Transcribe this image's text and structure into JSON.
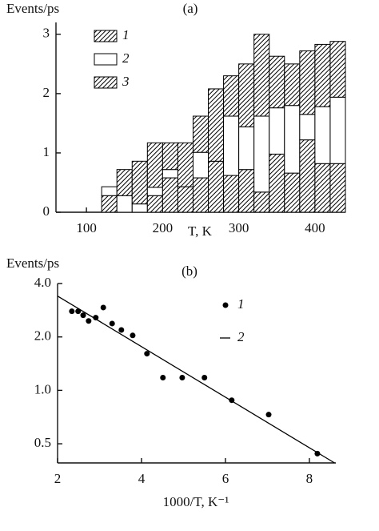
{
  "chart_data": [
    {
      "type": "histogram",
      "title": "(a)",
      "ylabel": "Events/ps",
      "xlabel": "T, K",
      "bins": [
        120,
        140,
        160,
        180,
        200,
        220,
        240,
        260,
        280,
        300,
        320,
        340,
        360,
        380,
        400,
        420,
        440
      ],
      "series": [
        {
          "name": "1",
          "color": "#000000",
          "hatch": true,
          "values": [
            0.28,
            0,
            0,
            0.28,
            0.58,
            0.43,
            0.58,
            0.86,
            0.62,
            0.72,
            0.34,
            0.98,
            0.66,
            1.22,
            0.82,
            0.82
          ]
        },
        {
          "name": "2",
          "color": "#ffffff",
          "hatch": false,
          "values": [
            0.15,
            0.28,
            0.14,
            0.14,
            0.14,
            0,
            0.43,
            0,
            1.0,
            0.72,
            1.28,
            0.78,
            1.14,
            0.43,
            0.96,
            1.12
          ]
        },
        {
          "name": "3",
          "color": "#000000",
          "hatch": true,
          "values": [
            0,
            0.44,
            0.72,
            0.75,
            0.45,
            0.74,
            0.61,
            1.22,
            0.68,
            1.06,
            1.38,
            0.87,
            0.7,
            1.07,
            1.05,
            0.94
          ]
        }
      ],
      "xlim": [
        60,
        440
      ],
      "xticks": [
        100,
        200,
        300,
        400
      ],
      "ylim": [
        0,
        3.2
      ],
      "yticks": [
        0,
        1,
        2,
        3
      ],
      "legend": "upper left"
    },
    {
      "type": "scatter",
      "title": "(b)",
      "ylabel": "Events/ps",
      "xlabel": "1000/T, K⁻¹",
      "series": [
        {
          "name": "1",
          "mode": "markers",
          "color": "#000000",
          "x": [
            2.34,
            2.49,
            2.61,
            2.74,
            2.91,
            3.09,
            3.3,
            3.52,
            3.79,
            4.13,
            4.51,
            4.97,
            5.5,
            6.15,
            7.03,
            8.19
          ],
          "y": [
            2.79,
            2.79,
            2.65,
            2.46,
            2.57,
            2.93,
            2.38,
            2.19,
            2.04,
            1.61,
            1.18,
            1.18,
            1.18,
            0.88,
            0.73,
            0.44
          ]
        },
        {
          "name": "2",
          "mode": "line",
          "color": "#000000",
          "x": [
            2,
            8.6
          ],
          "y": [
            3.4,
            0.39
          ]
        }
      ],
      "xlim": [
        2,
        8.63
      ],
      "xticks": [
        2,
        4,
        6,
        8
      ],
      "ylim": [
        0.39,
        4.0
      ],
      "log_y": true,
      "yticks": [
        {
          "value": 4,
          "label": "4.0"
        },
        {
          "value": 2,
          "label": "2.0"
        },
        {
          "value": 1,
          "label": "1.0"
        },
        0.5
      ],
      "legend": "upper right"
    }
  ]
}
